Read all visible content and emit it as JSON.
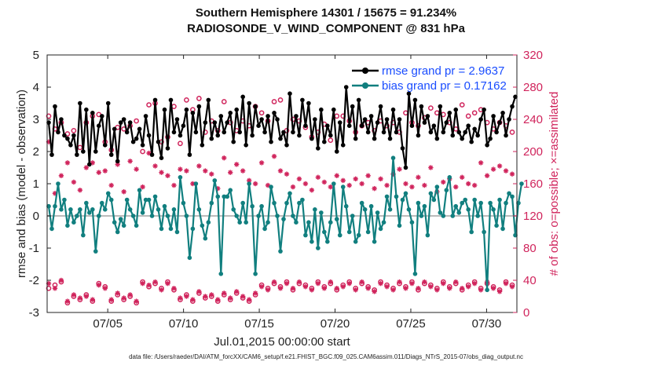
{
  "chart_data": {
    "type": "line",
    "title": "Southern Hemisphere 14301 / 15675 = 91.234%",
    "subtitle": "RADIOSONDE_V_WIND_COMPONENT @ 831 hPa",
    "xlabel": "Jul.01,2015 00:00:00 start",
    "ylabel_left": "rmse and bias (model - observation)",
    "ylabel_right": "# of obs: o=possible; ×=assimilated",
    "xlim": [
      1,
      32
    ],
    "ylim_left": [
      -3,
      5
    ],
    "ylim_right": [
      0,
      320
    ],
    "x_ticks": [
      5,
      10,
      15,
      20,
      25,
      30
    ],
    "x_tick_labels": [
      "07/05",
      "07/10",
      "07/15",
      "07/20",
      "07/25",
      "07/30"
    ],
    "y_ticks_left": [
      -3,
      -2,
      -1,
      0,
      1,
      2,
      3,
      4,
      5
    ],
    "y_ticks_right": [
      0,
      40,
      80,
      120,
      160,
      200,
      240,
      280,
      320
    ],
    "legend": [
      {
        "label": "rmse grand pr = 2.9637",
        "color": "#000000"
      },
      {
        "label": "bias grand pr = 0.17162",
        "color": "#117f7f"
      }
    ],
    "colors": {
      "rmse": "#000000",
      "bias": "#117f7f",
      "obs": "#d0245c",
      "legend_text": "#1a4dff",
      "zero_line": "#bbbbbb"
    },
    "footer": "data file: /Users/raeder/DAI/ATM_forcXX/CAM6_setup/f.e21.FHIST_BGC.f09_025.CAM6assim.011/Diags_NTrS_2015-07/obs_diag_output.nc",
    "series": [
      {
        "name": "rmse",
        "values": [
          2.9,
          1.9,
          3.4,
          2.6,
          3.0,
          2.5,
          2.4,
          2.2,
          2.5,
          1.9,
          3.5,
          2.0,
          3.3,
          1.6,
          3.2,
          2.0,
          2.8,
          3.1,
          2.2,
          3.5,
          1.9,
          2.7,
          1.7,
          2.9,
          3.0,
          2.6,
          2.9,
          2.3,
          2.4,
          2.7,
          2.2,
          3.1,
          2.5,
          1.9,
          3.6,
          2.3,
          1.8,
          3.3,
          2.1,
          3.6,
          2.6,
          3.0,
          2.5,
          2.8,
          3.3,
          1.9,
          3.2,
          2.6,
          3.4,
          2.2,
          2.9,
          3.6,
          2.4,
          2.9,
          2.5,
          3.1,
          2.6,
          2.9,
          3.2,
          2.3,
          3.3,
          2.6,
          3.7,
          2.2,
          3.5,
          2.5,
          3.4,
          2.8,
          3.0,
          2.6,
          3.1,
          2.3,
          3.2,
          3.0,
          2.4,
          2.6,
          2.2,
          3.8,
          2.6,
          3.1,
          2.5,
          3.6,
          2.8,
          3.5,
          2.4,
          3.0,
          2.1,
          3.3,
          2.3,
          2.8,
          2.5,
          3.3,
          2.0,
          2.9,
          2.2,
          4.0,
          2.8,
          3.4,
          2.4,
          3.6,
          2.8,
          3.0,
          2.6,
          3.1,
          2.4,
          2.9,
          3.4,
          2.6,
          3.0,
          2.4,
          3.3,
          2.6,
          3.0,
          2.1,
          1.5,
          3.8,
          2.8,
          3.6,
          2.5,
          3.4,
          2.9,
          3.1,
          2.6,
          2.8,
          2.4,
          3.4,
          2.6,
          2.9,
          3.2,
          2.5,
          3.3,
          2.6,
          2.4,
          2.6,
          2.8,
          2.3,
          2.7,
          2.5,
          3.0,
          3.3,
          2.2,
          2.4,
          3.1,
          2.6,
          2.9,
          3.2,
          2.5,
          3.0,
          3.4,
          3.7
        ]
      },
      {
        "name": "bias",
        "values": [
          0.3,
          -0.4,
          0.3,
          1.0,
          0.2,
          0.5,
          -0.3,
          0.2,
          -0.2,
          0.0,
          0.2,
          -0.6,
          0.4,
          0.1,
          0.2,
          -1.1,
          0.0,
          0.4,
          0.2,
          0.7,
          0.5,
          -0.2,
          -0.5,
          -0.1,
          -0.3,
          0.5,
          0.2,
          0.0,
          -0.3,
          0.8,
          0.1,
          0.5,
          0.5,
          0.0,
          0.6,
          0.2,
          -0.4,
          0.3,
          0.0,
          -0.4,
          0.2,
          -0.5,
          1.2,
          0.4,
          0.0,
          -1.3,
          -0.4,
          1.0,
          0.2,
          -0.3,
          -0.7,
          -0.2,
          0.4,
          1.1,
          0.6,
          -1.8,
          0.6,
          0.6,
          0.8,
          0.2,
          0.0,
          -0.2,
          0.4,
          -0.2,
          1.0,
          0.3,
          -1.8,
          0.0,
          0.3,
          -0.4,
          -0.2,
          0.9,
          0.4,
          0.0,
          -1.1,
          -0.1,
          0.4,
          0.7,
          0.0,
          -0.2,
          0.4,
          0.5,
          -0.6,
          -0.2,
          -0.8,
          0.2,
          -1.0,
          0.1,
          -0.5,
          -0.8,
          -0.2,
          1.0,
          -0.1,
          -0.6,
          0.9,
          0.3,
          -0.5,
          0.0,
          -0.8,
          -0.6,
          0.4,
          0.2,
          -0.5,
          0.3,
          -0.8,
          0.1,
          -0.4,
          -0.2,
          0.6,
          0.2,
          1.8,
          0.6,
          -0.3,
          0.5,
          0.7,
          0.2,
          -0.2,
          -1.8,
          0.4,
          0.0,
          0.3,
          -0.6,
          0.7,
          0.5,
          0.9,
          0.1,
          0.0,
          0.8,
          1.2,
          0.0,
          0.3,
          0.1,
          0.4,
          0.5,
          0.2,
          -0.5,
          0.5,
          0.0,
          0.4,
          -0.5,
          -2.3,
          0.4,
          0.2,
          -0.3,
          0.5,
          -0.4,
          0.4,
          0.7,
          0.6,
          -0.6,
          0.4,
          1.0
        ]
      },
      {
        "name": "obs_possible",
        "values": [
          244,
          220,
          228,
          212,
          236,
          234,
          222,
          210,
          226,
          232,
          205,
          216,
          236,
          222,
          244,
          208,
          246,
          228,
          212,
          258,
          202,
          234,
          230,
          256,
          228,
          238,
          232,
          216,
          238,
          244,
          200,
          238,
          258,
          206,
          260,
          244,
          212,
          262,
          218,
          270,
          256,
          232,
          210,
          250,
          264,
          216,
          252,
          210,
          266,
          244,
          224,
          260,
          238,
          254,
          226,
          248,
          262,
          222,
          236,
          246,
          226,
          258,
          238,
          256,
          232,
          248,
          256,
          220,
          248,
          236,
          238,
          226,
          262,
          236,
          264,
          242,
          226,
          256,
          240,
          240,
          238,
          248,
          230,
          246,
          218,
          258,
          224,
          256,
          234,
          252,
          214,
          254,
          244,
          222,
          244,
          266,
          238,
          258,
          224,
          252,
          232,
          248,
          236,
          264,
          226,
          258,
          238,
          244,
          232,
          260,
          236,
          252,
          224,
          270,
          248,
          260,
          236,
          250,
          232,
          256,
          242,
          224,
          254,
          236,
          248,
          228,
          246,
          240,
          236,
          254,
          228,
          236,
          258,
          232,
          244,
          238,
          248,
          228,
          252,
          240,
          236,
          260,
          228,
          248,
          236,
          250,
          232,
          246,
          224,
          240
        ]
      },
      {
        "name": "obs_assimilated",
        "values": [
          212,
          180,
          148,
          192,
          170,
          158,
          186,
          174,
          162,
          178,
          152,
          168,
          180,
          156,
          186,
          164,
          174,
          152,
          176,
          196,
          158,
          168,
          184,
          164,
          150,
          172,
          188,
          162,
          178,
          192,
          156,
          176,
          198,
          164,
          182,
          160,
          174,
          196,
          170,
          184,
          158,
          166,
          178,
          152,
          176,
          186,
          160,
          170,
          182,
          164,
          176,
          158,
          172,
          188,
          154,
          178,
          192,
          160,
          174,
          166,
          184,
          156,
          176,
          196,
          164,
          178,
          160,
          174,
          186,
          170,
          158,
          180,
          194,
          166,
          176,
          160,
          172,
          188,
          156,
          178,
          166,
          182,
          160,
          176,
          152,
          190,
          168,
          178,
          162,
          184,
          156,
          178,
          170,
          192,
          164,
          176,
          158,
          182,
          166,
          174,
          160,
          188,
          170,
          176,
          154,
          182,
          166,
          172,
          158,
          186,
          172,
          164,
          178,
          190,
          160,
          174,
          156,
          176,
          168,
          184,
          158,
          172,
          180,
          164,
          150,
          176,
          162,
          182,
          166,
          174,
          156,
          178,
          168,
          184,
          160,
          172,
          158,
          176,
          186,
          164,
          170,
          156,
          178,
          168,
          182,
          160,
          176,
          164,
          172,
          158
        ]
      },
      {
        "name": "obs_possible_low",
        "values": [
          30,
          18,
          34,
          14,
          38,
          22,
          12,
          36,
          20,
          30,
          16,
          34,
          22,
          38,
          14,
          28,
          36,
          18,
          32,
          24,
          14,
          38,
          22,
          30,
          16,
          36,
          20,
          34,
          12,
          28,
          38,
          16,
          32,
          22,
          36,
          14,
          30,
          20,
          38,
          18,
          28,
          34,
          16,
          36,
          22,
          30,
          14,
          38,
          24,
          32,
          18,
          36,
          20,
          28,
          14,
          34,
          22,
          38,
          16,
          30,
          24,
          36,
          18,
          32,
          14,
          38,
          22,
          28,
          34,
          16,
          30,
          20,
          36,
          14,
          32,
          24,
          38,
          18,
          28,
          22,
          36,
          16,
          34,
          20,
          30,
          14,
          38,
          24,
          32,
          18,
          36,
          20,
          28,
          16,
          34,
          22,
          38,
          14,
          30,
          24,
          36,
          18,
          32,
          20,
          28,
          14,
          38,
          22,
          34,
          16,
          30,
          24,
          36,
          18,
          32,
          20,
          38,
          14,
          28,
          22,
          36,
          16,
          34,
          24,
          30,
          18,
          38,
          20,
          32,
          14,
          36,
          22,
          28,
          16,
          34,
          24,
          38,
          18,
          30,
          20,
          36,
          14,
          32,
          22,
          28,
          16,
          38,
          24,
          34,
          18
        ]
      },
      {
        "name": "obs_assimilated_low",
        "values": [
          36,
          20,
          30,
          16,
          40,
          24,
          14,
          34,
          22,
          32,
          18,
          36,
          20,
          40,
          16,
          26,
          34,
          20,
          30,
          26,
          16,
          36,
          24,
          28,
          18,
          38,
          22,
          32,
          14,
          30,
          36,
          18,
          34,
          20,
          38,
          16,
          28,
          22,
          36,
          20,
          30,
          32,
          18,
          38,
          20,
          28,
          16,
          36,
          26,
          30,
          20,
          38,
          22,
          26,
          16,
          36,
          24,
          36,
          18,
          28,
          26,
          38,
          20,
          30,
          16,
          36,
          24,
          30,
          32,
          18,
          28,
          22,
          38,
          16,
          30,
          26,
          36,
          20,
          30,
          24,
          38,
          18,
          32,
          22,
          28,
          16,
          36,
          26,
          30,
          20,
          38,
          22,
          30,
          18,
          32,
          24,
          36,
          16,
          28,
          26,
          38,
          20,
          30,
          22,
          26,
          16,
          36,
          24,
          32,
          18,
          28,
          26,
          38,
          20,
          30,
          22,
          36,
          16,
          30,
          24,
          38,
          18,
          32,
          26,
          28,
          20,
          36,
          22,
          30,
          16,
          38,
          24,
          30,
          18,
          32,
          26,
          36,
          20,
          28,
          22,
          38,
          16,
          30,
          24,
          26,
          18,
          36,
          26,
          32,
          20
        ]
      }
    ]
  }
}
